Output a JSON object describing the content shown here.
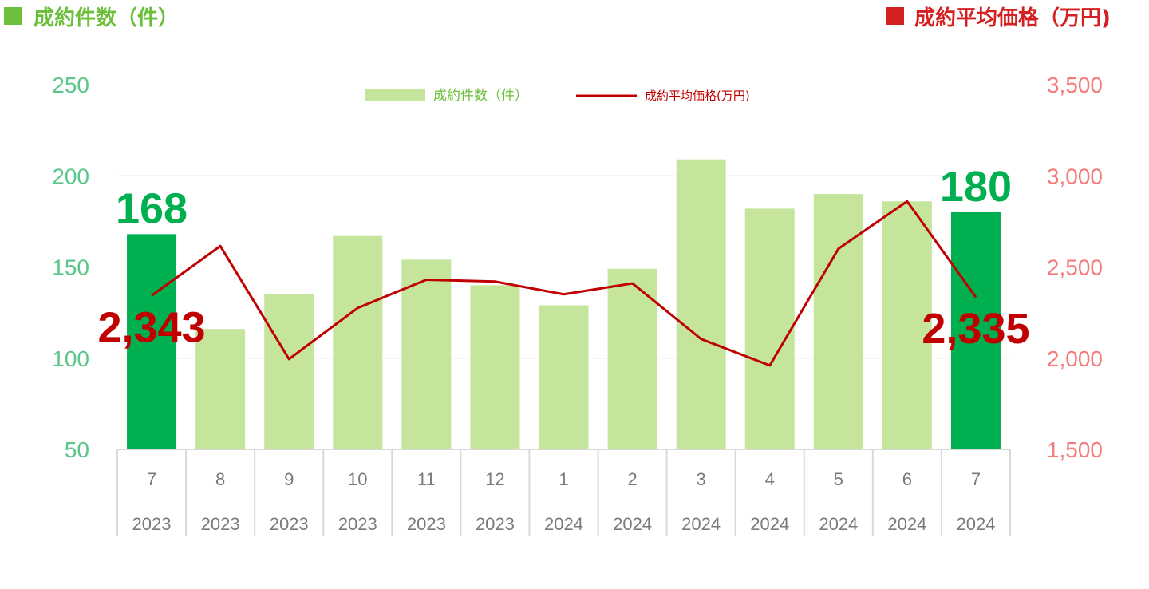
{
  "header": {
    "left_title": "成約件数（件）",
    "right_title": "成約平均価格（万円)"
  },
  "colors": {
    "bar_normal": "#c5e59d",
    "bar_highlight": "#00b050",
    "line": "#c00000",
    "left_axis": "#5cc58a",
    "right_axis": "#f47b7b",
    "left_marker": "#6cbf3a",
    "right_marker": "#d42020",
    "grid": "#d9d9d9"
  },
  "chart_data": {
    "type": "bar",
    "categories": [
      {
        "month": "7",
        "year": "2023"
      },
      {
        "month": "8",
        "year": "2023"
      },
      {
        "month": "9",
        "year": "2023"
      },
      {
        "month": "10",
        "year": "2023"
      },
      {
        "month": "11",
        "year": "2023"
      },
      {
        "month": "12",
        "year": "2023"
      },
      {
        "month": "1",
        "year": "2024"
      },
      {
        "month": "2",
        "year": "2024"
      },
      {
        "month": "3",
        "year": "2024"
      },
      {
        "month": "4",
        "year": "2024"
      },
      {
        "month": "5",
        "year": "2024"
      },
      {
        "month": "6",
        "year": "2024"
      },
      {
        "month": "7",
        "year": "2024"
      }
    ],
    "series": [
      {
        "name": "成約件数（件）",
        "type": "bar",
        "axis": "left",
        "values": [
          168,
          116,
          135,
          167,
          154,
          140,
          129,
          149,
          209,
          182,
          190,
          186,
          180
        ],
        "highlight": [
          true,
          false,
          false,
          false,
          false,
          false,
          false,
          false,
          false,
          false,
          false,
          false,
          true
        ]
      },
      {
        "name": "成約平均価格(万円)",
        "type": "line",
        "axis": "right",
        "values": [
          2343,
          2615,
          1995,
          2275,
          2430,
          2420,
          2350,
          2410,
          2105,
          1960,
          2600,
          2860,
          2335
        ]
      }
    ],
    "y_left": {
      "min": 50,
      "max": 250,
      "ticks": [
        "50",
        "100",
        "150",
        "200",
        "250"
      ]
    },
    "y_right": {
      "min": 1500,
      "max": 3500,
      "ticks": [
        "1,500",
        "2,000",
        "2,500",
        "3,000",
        "3,500"
      ]
    },
    "grid": true,
    "legend_position": "top-center",
    "annotations": {
      "first_bar": "168",
      "last_bar": "180",
      "first_price": "2,343",
      "last_price": "2,335"
    }
  }
}
